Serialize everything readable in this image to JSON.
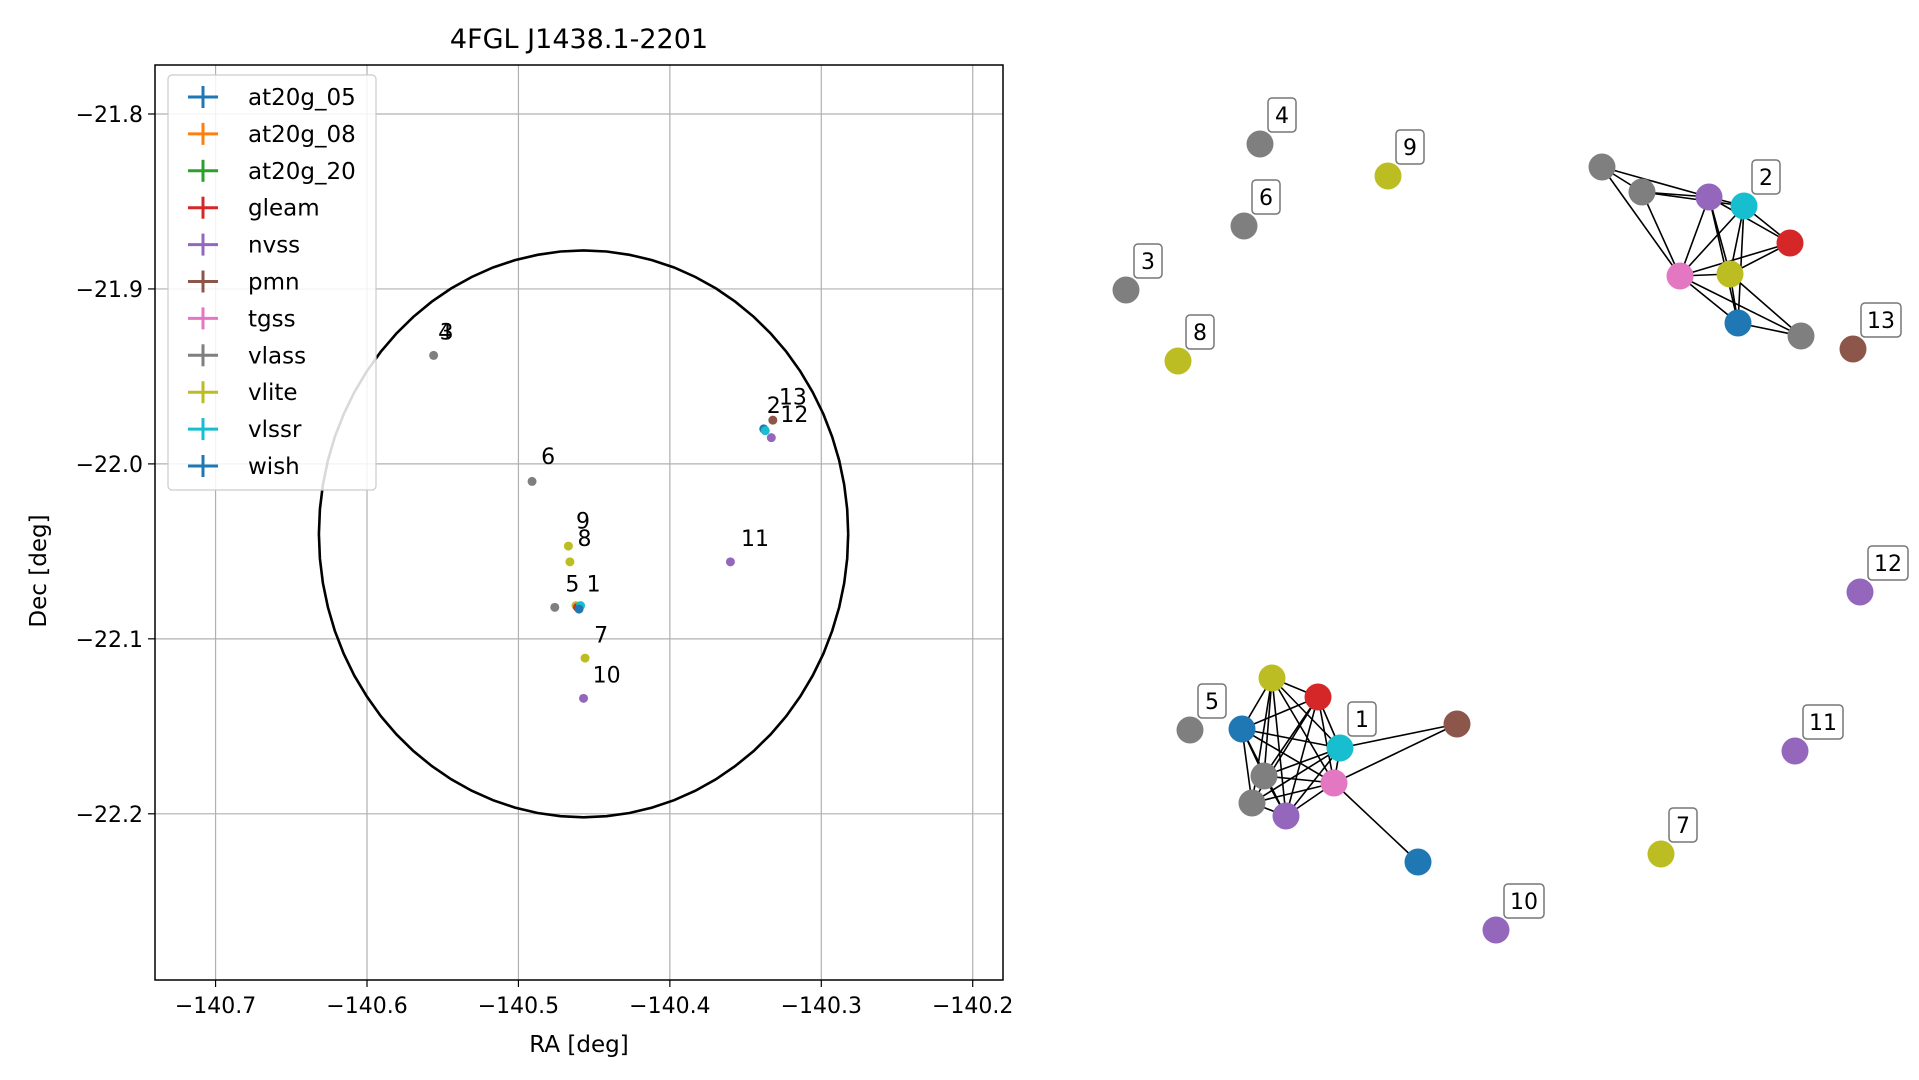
{
  "chart_data": [
    {
      "type": "scatter",
      "title": "4FGL J1438.1-2201",
      "xlabel": "RA [deg]",
      "ylabel": "Dec [deg]",
      "xlim": [
        -140.74,
        -140.18
      ],
      "ylim": [
        -22.295,
        -21.772
      ],
      "xticks": [
        -140.7,
        -140.6,
        -140.5,
        -140.4,
        -140.3,
        -140.2
      ],
      "xtick_labels": [
        "−140.7",
        "−140.6",
        "−140.5",
        "−140.4",
        "−140.3",
        "−140.2"
      ],
      "yticks": [
        -21.8,
        -21.9,
        -22.0,
        -22.1,
        -22.2
      ],
      "ytick_labels": [
        "−21.8",
        "−21.9",
        "−22.0",
        "−22.1",
        "−22.2"
      ],
      "grid": true,
      "legend_position": "top-left",
      "legend": [
        {
          "name": "at20g_05",
          "color": "#1f77b4"
        },
        {
          "name": "at20g_08",
          "color": "#ff7f0e"
        },
        {
          "name": "at20g_20",
          "color": "#2ca02c"
        },
        {
          "name": "gleam",
          "color": "#d62728"
        },
        {
          "name": "nvss",
          "color": "#9467bd"
        },
        {
          "name": "pmn",
          "color": "#8c564b"
        },
        {
          "name": "tgss",
          "color": "#e377c2"
        },
        {
          "name": "vlass",
          "color": "#7f7f7f"
        },
        {
          "name": "vlite",
          "color": "#bcbd22"
        },
        {
          "name": "vlssr",
          "color": "#17becf"
        },
        {
          "name": "wish",
          "color": "#1f77b4"
        }
      ],
      "circle": {
        "center": [
          -140.457,
          -22.04
        ],
        "radius_dec_deg": 0.162
      },
      "points": [
        {
          "ra": -140.556,
          "dec": -21.938,
          "color": "#7f7f7f"
        },
        {
          "ra": -140.491,
          "dec": -22.01,
          "color": "#7f7f7f"
        },
        {
          "ra": -140.467,
          "dec": -22.047,
          "color": "#bcbd22"
        },
        {
          "ra": -140.466,
          "dec": -22.056,
          "color": "#bcbd22"
        },
        {
          "ra": -140.476,
          "dec": -22.082,
          "color": "#7f7f7f"
        },
        {
          "ra": -140.462,
          "dec": -22.081,
          "color": "#bcbd22"
        },
        {
          "ra": -140.461,
          "dec": -22.082,
          "color": "#d62728"
        },
        {
          "ra": -140.459,
          "dec": -22.081,
          "color": "#17becf"
        },
        {
          "ra": -140.46,
          "dec": -22.083,
          "color": "#1f77b4"
        },
        {
          "ra": -140.456,
          "dec": -22.111,
          "color": "#bcbd22"
        },
        {
          "ra": -140.457,
          "dec": -22.134,
          "color": "#9467bd"
        },
        {
          "ra": -140.36,
          "dec": -22.056,
          "color": "#9467bd"
        },
        {
          "ra": -140.338,
          "dec": -21.98,
          "color": "#1f77b4"
        },
        {
          "ra": -140.337,
          "dec": -21.981,
          "color": "#17becf"
        },
        {
          "ra": -140.332,
          "dec": -21.975,
          "color": "#8c564b"
        },
        {
          "ra": -140.333,
          "dec": -21.985,
          "color": "#9467bd"
        }
      ],
      "annotations": [
        {
          "text": "4",
          "ra": -140.553,
          "dec": -21.929
        },
        {
          "text": "3",
          "ra": -140.552,
          "dec": -21.929
        },
        {
          "text": "6",
          "ra": -140.485,
          "dec": -22.0
        },
        {
          "text": "9",
          "ra": -140.462,
          "dec": -22.037
        },
        {
          "text": "8",
          "ra": -140.461,
          "dec": -22.047
        },
        {
          "text": "5",
          "ra": -140.469,
          "dec": -22.073
        },
        {
          "text": "1",
          "ra": -140.455,
          "dec": -22.073
        },
        {
          "text": "7",
          "ra": -140.45,
          "dec": -22.102
        },
        {
          "text": "10",
          "ra": -140.451,
          "dec": -22.125
        },
        {
          "text": "11",
          "ra": -140.353,
          "dec": -22.047
        },
        {
          "text": "2",
          "ra": -140.336,
          "dec": -21.971
        },
        {
          "text": "13",
          "ra": -140.328,
          "dec": -21.966
        },
        {
          "text": "12",
          "ra": -140.327,
          "dec": -21.976
        }
      ]
    },
    {
      "type": "network",
      "nodes": [
        {
          "id": "n4",
          "color": "#7f7f7f",
          "label": "4"
        },
        {
          "id": "n9",
          "color": "#bcbd22",
          "label": "9"
        },
        {
          "id": "n6",
          "color": "#7f7f7f",
          "label": "6"
        },
        {
          "id": "n3",
          "color": "#7f7f7f",
          "label": "3"
        },
        {
          "id": "n8",
          "color": "#bcbd22",
          "label": "8"
        },
        {
          "id": "a1",
          "color": "#7f7f7f",
          "label": ""
        },
        {
          "id": "a2",
          "color": "#7f7f7f",
          "label": ""
        },
        {
          "id": "a3",
          "color": "#9467bd",
          "label": ""
        },
        {
          "id": "a4",
          "color": "#17becf",
          "label": "2"
        },
        {
          "id": "a5",
          "color": "#d62728",
          "label": ""
        },
        {
          "id": "a6",
          "color": "#e377c2",
          "label": ""
        },
        {
          "id": "a7",
          "color": "#bcbd22",
          "label": ""
        },
        {
          "id": "a8",
          "color": "#1f77b4",
          "label": ""
        },
        {
          "id": "a9",
          "color": "#7f7f7f",
          "label": ""
        },
        {
          "id": "n13",
          "color": "#8c564b",
          "label": "13"
        },
        {
          "id": "n12",
          "color": "#9467bd",
          "label": "12"
        },
        {
          "id": "n5",
          "color": "#7f7f7f",
          "label": "5"
        },
        {
          "id": "b1",
          "color": "#1f77b4",
          "label": ""
        },
        {
          "id": "b2",
          "color": "#bcbd22",
          "label": ""
        },
        {
          "id": "b3",
          "color": "#d62728",
          "label": ""
        },
        {
          "id": "b4",
          "color": "#17becf",
          "label": "1"
        },
        {
          "id": "b5",
          "color": "#7f7f7f",
          "label": ""
        },
        {
          "id": "b6",
          "color": "#7f7f7f",
          "label": ""
        },
        {
          "id": "b7",
          "color": "#9467bd",
          "label": ""
        },
        {
          "id": "b8",
          "color": "#e377c2",
          "label": ""
        },
        {
          "id": "b9",
          "color": "#8c564b",
          "label": ""
        },
        {
          "id": "b10",
          "color": "#1f77b4",
          "label": ""
        },
        {
          "id": "n11",
          "color": "#9467bd",
          "label": "11"
        },
        {
          "id": "n7",
          "color": "#bcbd22",
          "label": "7"
        },
        {
          "id": "n10",
          "color": "#9467bd",
          "label": "10"
        }
      ],
      "edges": [
        [
          "a1",
          "a2"
        ],
        [
          "a1",
          "a3"
        ],
        [
          "a1",
          "a6"
        ],
        [
          "a2",
          "a3"
        ],
        [
          "a2",
          "a4"
        ],
        [
          "a2",
          "a6"
        ],
        [
          "a3",
          "a4"
        ],
        [
          "a3",
          "a5"
        ],
        [
          "a3",
          "a6"
        ],
        [
          "a3",
          "a7"
        ],
        [
          "a3",
          "a8"
        ],
        [
          "a4",
          "a5"
        ],
        [
          "a4",
          "a6"
        ],
        [
          "a4",
          "a7"
        ],
        [
          "a4",
          "a8"
        ],
        [
          "a5",
          "a6"
        ],
        [
          "a5",
          "a7"
        ],
        [
          "a6",
          "a7"
        ],
        [
          "a6",
          "a8"
        ],
        [
          "a6",
          "a9"
        ],
        [
          "a7",
          "a8"
        ],
        [
          "a7",
          "a9"
        ],
        [
          "a8",
          "a9"
        ],
        [
          "b1",
          "b2"
        ],
        [
          "b1",
          "b3"
        ],
        [
          "b1",
          "b4"
        ],
        [
          "b1",
          "b5"
        ],
        [
          "b1",
          "b6"
        ],
        [
          "b1",
          "b7"
        ],
        [
          "b1",
          "b8"
        ],
        [
          "b2",
          "b3"
        ],
        [
          "b2",
          "b4"
        ],
        [
          "b2",
          "b5"
        ],
        [
          "b2",
          "b6"
        ],
        [
          "b2",
          "b7"
        ],
        [
          "b2",
          "b8"
        ],
        [
          "b3",
          "b4"
        ],
        [
          "b3",
          "b5"
        ],
        [
          "b3",
          "b6"
        ],
        [
          "b3",
          "b7"
        ],
        [
          "b3",
          "b8"
        ],
        [
          "b4",
          "b5"
        ],
        [
          "b4",
          "b6"
        ],
        [
          "b4",
          "b7"
        ],
        [
          "b4",
          "b8"
        ],
        [
          "b4",
          "b9"
        ],
        [
          "b5",
          "b7"
        ],
        [
          "b5",
          "b8"
        ],
        [
          "b6",
          "b7"
        ],
        [
          "b6",
          "b8"
        ],
        [
          "b7",
          "b8"
        ],
        [
          "b8",
          "b9"
        ],
        [
          "b8",
          "b10"
        ]
      ]
    }
  ]
}
